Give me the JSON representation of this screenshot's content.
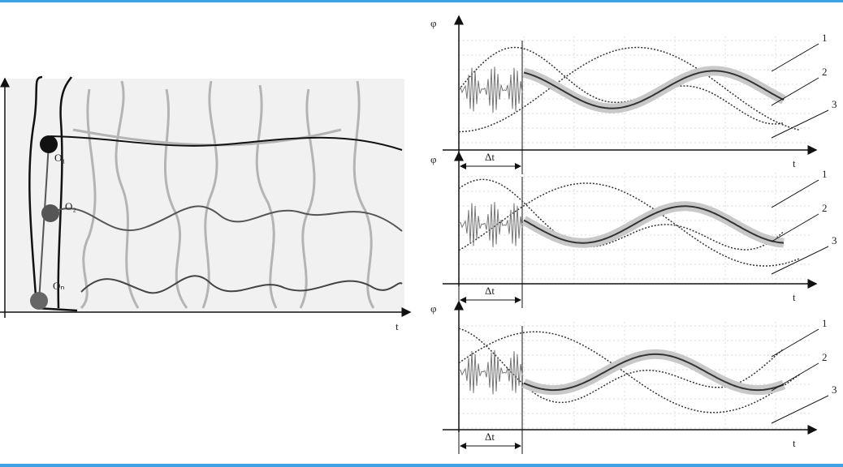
{
  "left_diagram": {
    "joints": [
      "O₁",
      "O₂",
      "Oₙ"
    ],
    "axis_label": "t"
  },
  "panels": [
    {
      "y_label": "φ",
      "x_label": "t",
      "interval": "Δt",
      "curve_labels": [
        "1",
        "2",
        "3"
      ]
    },
    {
      "y_label": "φ",
      "x_label": "t",
      "interval": "Δt",
      "curve_labels": [
        "1",
        "2",
        "3"
      ]
    },
    {
      "y_label": "φ",
      "x_label": "t",
      "interval": "Δt",
      "curve_labels": [
        "1",
        "2",
        "3"
      ]
    }
  ]
}
